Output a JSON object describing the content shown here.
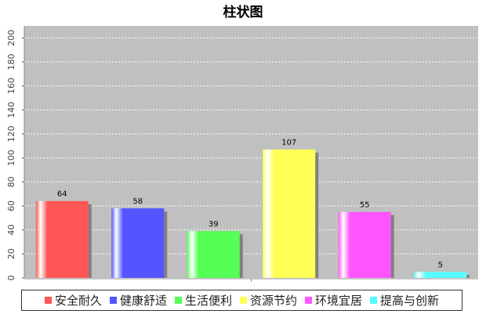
{
  "chart_data": {
    "type": "bar",
    "title": "柱状图",
    "categories": [
      "安全耐久",
      "健康舒适",
      "生活便利",
      "资源节约",
      "环境宜居",
      "提高与创新"
    ],
    "values": [
      64,
      58,
      39,
      107,
      55,
      5
    ],
    "ylim": [
      0,
      210
    ],
    "yticks": [
      0,
      20,
      40,
      60,
      80,
      100,
      120,
      140,
      160,
      180,
      200
    ],
    "xlabel": "",
    "ylabel": "",
    "grid": true,
    "legend_position": "bottom",
    "colors": [
      "#ff5555",
      "#5555ff",
      "#55ff55",
      "#ffff55",
      "#ff55ff",
      "#55ffff"
    ],
    "plot_background": "#c0c0c0"
  }
}
